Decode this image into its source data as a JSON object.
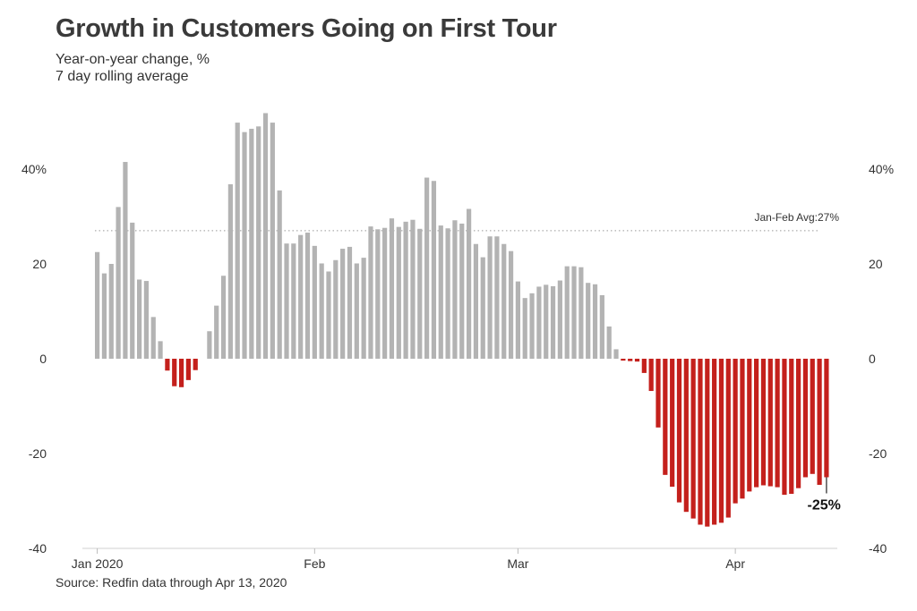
{
  "title": "Growth in Customers Going on First Tour",
  "subtitle_line1": "Year-on-year change, %",
  "subtitle_line2": "7 day rolling average",
  "source": "Source: Redfin data through Apr 13, 2020",
  "chart_data": {
    "type": "bar",
    "ylim": [
      -40,
      50
    ],
    "y_ticks": [
      40,
      20,
      0,
      -20,
      -40
    ],
    "y_tick_labels": [
      "40%",
      "20",
      "0",
      "-20",
      "-40"
    ],
    "x_tick_labels": [
      "Jan 2020",
      "Feb",
      "Mar",
      "Apr"
    ],
    "x_tick_positions": [
      0,
      31,
      60,
      91
    ],
    "grid": false,
    "positive_color": "#b3b3b3",
    "negative_color": "#c4201c",
    "reference_line": {
      "value": 27,
      "label": "Jan-Feb Avg:27%"
    },
    "end_label": "-25%",
    "values": [
      22.5,
      18,
      20,
      32,
      41.5,
      28.7,
      16.7,
      16.4,
      8.8,
      3.7,
      -2.5,
      -5.8,
      -6,
      -4.5,
      -2.4,
      0,
      5.8,
      11.2,
      17.5,
      36.8,
      49.8,
      47.8,
      48.5,
      49,
      51.8,
      49.8,
      35.5,
      24.3,
      24.3,
      26.1,
      26.6,
      23.8,
      20.1,
      18.4,
      20.8,
      23.2,
      23.6,
      20.1,
      21.3,
      27.9,
      27.3,
      27.6,
      29.6,
      27.8,
      28.9,
      29.3,
      27.4,
      38.2,
      37.5,
      28.1,
      27.5,
      29.2,
      28.5,
      31.6,
      24.2,
      21.4,
      25.8,
      25.8,
      24.2,
      22.7,
      16.3,
      12.8,
      13.8,
      15.2,
      15.6,
      15.3,
      16.5,
      19.5,
      19.5,
      19.3,
      16,
      15.7,
      13.4,
      6.8,
      2,
      -0.4,
      -0.5,
      -0.6,
      -3,
      -6.8,
      -14.5,
      -24.5,
      -27,
      -30.3,
      -32.3,
      -33.7,
      -35,
      -35.4,
      -35,
      -34.6,
      -33.5,
      -30.5,
      -29.5,
      -28,
      -27.1,
      -26.7,
      -26.9,
      -27.1,
      -28.7,
      -28.5,
      -27.3,
      -25,
      -24.3,
      -26.6,
      -25
    ]
  }
}
